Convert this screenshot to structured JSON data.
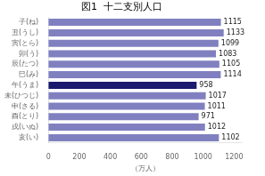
{
  "chart_data": {
    "type": "bar",
    "orientation": "horizontal",
    "title": "図1  十二支別人口",
    "xlabel": "（万人）",
    "categories": [
      "子(ね)",
      "丑(うし)",
      "寅(とら)",
      "卯(う)",
      "辰(たつ)",
      "巳(み)",
      "午(うま)",
      "未(ひつじ)",
      "申(さる)",
      "酉(とり)",
      "戌(いぬ)",
      "亥(い)"
    ],
    "values": [
      1115,
      1133,
      1099,
      1083,
      1105,
      1114,
      958,
      1017,
      1011,
      971,
      1012,
      1102
    ],
    "colors": [
      "#8080c0",
      "#8080c0",
      "#8080c0",
      "#8080c0",
      "#8080c0",
      "#8080c0",
      "#1a1a6e",
      "#8080c0",
      "#8080c0",
      "#8080c0",
      "#8080c0",
      "#8080c0"
    ],
    "xlim": [
      0,
      1250
    ],
    "xticks": [
      0,
      200,
      400,
      600,
      800,
      1000,
      1200
    ],
    "grid": false,
    "data_labels": true
  }
}
